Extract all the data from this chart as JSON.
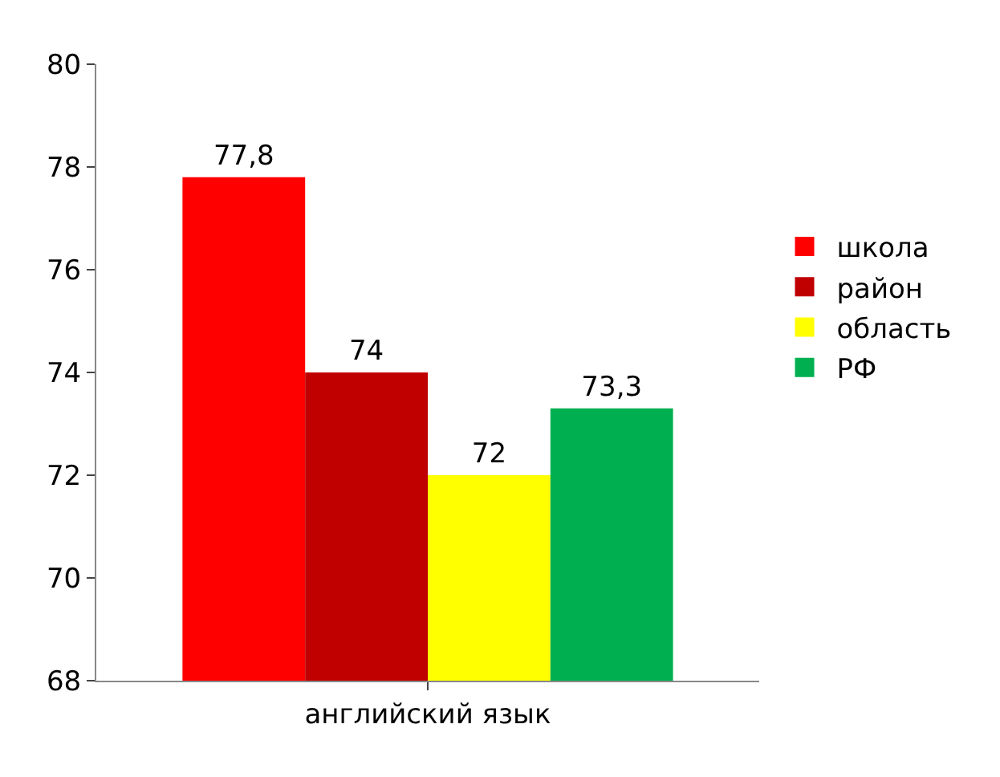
{
  "chart_data": {
    "type": "bar",
    "categories": [
      "английский язык"
    ],
    "series": [
      {
        "name": "школа",
        "color": "#ff0000",
        "values": [
          77.8
        ],
        "value_labels": [
          "77,8"
        ]
      },
      {
        "name": "район",
        "color": "#c00000",
        "values": [
          74
        ],
        "value_labels": [
          "74"
        ]
      },
      {
        "name": "область",
        "color": "#ffff00",
        "values": [
          72
        ],
        "value_labels": [
          "72"
        ]
      },
      {
        "name": "РФ",
        "color": "#00b050",
        "values": [
          73.3
        ],
        "value_labels": [
          "73,3"
        ]
      }
    ],
    "ylim": [
      68,
      80
    ],
    "yticks": [
      68,
      70,
      72,
      74,
      76,
      78,
      80
    ],
    "grid": false,
    "legend": "right"
  }
}
